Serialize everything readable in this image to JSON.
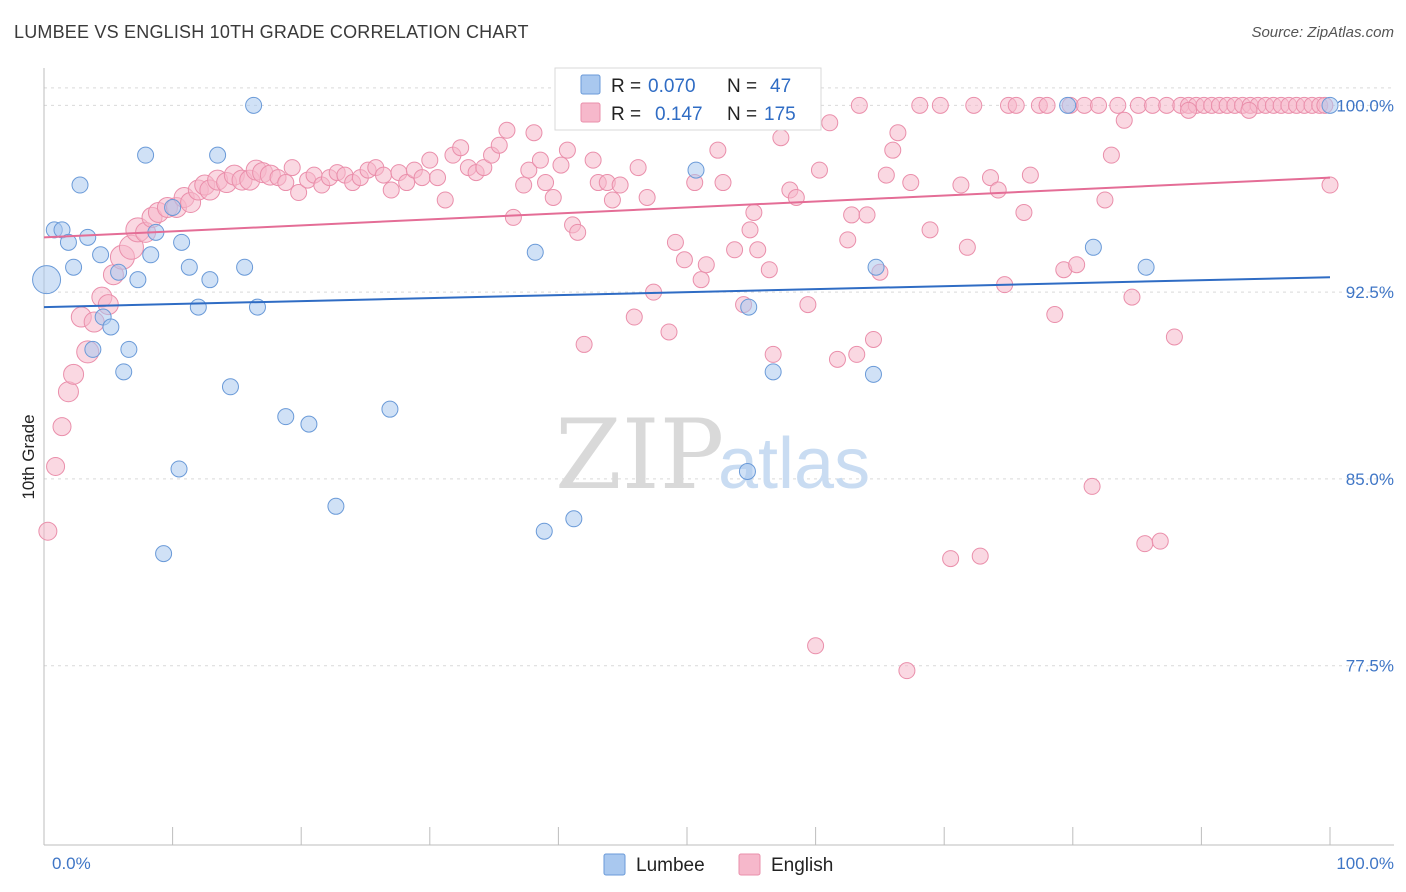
{
  "header": {
    "title": "LUMBEE VS ENGLISH 10TH GRADE CORRELATION CHART",
    "source": "Source: ZipAtlas.com"
  },
  "legend_stats": {
    "lumbee": {
      "r_label": "R = ",
      "r_value": "0.070",
      "n_label": "N = ",
      "n_value": "47"
    },
    "english": {
      "r_label": "R = ",
      "r_value": "0.147",
      "n_label": "N = ",
      "n_value": "175"
    }
  },
  "watermark": {
    "zip": "ZIP",
    "atlas": "atlas"
  },
  "colors": {
    "lumbee_fill": "#a9c8ef",
    "lumbee_stroke": "#6a9ad8",
    "lumbee_line": "#2f6cc4",
    "english_fill": "#f6b8cb",
    "english_stroke": "#ea8fab",
    "english_line": "#e46d96",
    "tick_text": "#3f76c6",
    "grid": "#d9d9d9"
  },
  "chart_data": {
    "type": "scatter",
    "title": "LUMBEE VS ENGLISH 10TH GRADE CORRELATION CHART",
    "xlabel": "",
    "ylabel": "10th Grade",
    "xlim": [
      0,
      100
    ],
    "ylim": [
      70.3,
      101.5
    ],
    "x_tick_labels": [
      "0.0%",
      "100.0%"
    ],
    "y_ticks": [
      100.0,
      92.5,
      85.0,
      77.5
    ],
    "y_tick_labels": [
      "100.0%",
      "92.5%",
      "85.0%",
      "77.5%"
    ],
    "grid": true,
    "legend_position": "bottom-center",
    "series": [
      {
        "name": "Lumbee",
        "r": 0.07,
        "n": 47,
        "trend": {
          "x": [
            0,
            100
          ],
          "y": [
            91.9,
            93.1
          ]
        },
        "points": [
          [
            0.2,
            93.0,
            14
          ],
          [
            0.8,
            95.0,
            8
          ],
          [
            1.4,
            95.0,
            8
          ],
          [
            1.9,
            94.5,
            8
          ],
          [
            2.3,
            93.5,
            8
          ],
          [
            2.8,
            96.8,
            8
          ],
          [
            3.4,
            94.7,
            8
          ],
          [
            3.8,
            90.2,
            8
          ],
          [
            4.4,
            94.0,
            8
          ],
          [
            4.6,
            91.5,
            8
          ],
          [
            5.2,
            91.1,
            8
          ],
          [
            5.8,
            93.3,
            8
          ],
          [
            6.2,
            89.3,
            8
          ],
          [
            6.6,
            90.2,
            8
          ],
          [
            7.3,
            93.0,
            8
          ],
          [
            7.9,
            98.0,
            8
          ],
          [
            8.3,
            94.0,
            8
          ],
          [
            8.7,
            94.9,
            8
          ],
          [
            9.3,
            82.0,
            8
          ],
          [
            10.0,
            95.9,
            8
          ],
          [
            10.5,
            85.4,
            8
          ],
          [
            10.7,
            94.5,
            8
          ],
          [
            11.3,
            93.5,
            8
          ],
          [
            12.0,
            91.9,
            8
          ],
          [
            12.9,
            93.0,
            8
          ],
          [
            13.5,
            98.0,
            8
          ],
          [
            14.5,
            88.7,
            8
          ],
          [
            15.6,
            93.5,
            8
          ],
          [
            16.3,
            100.0,
            8
          ],
          [
            16.6,
            91.9,
            8
          ],
          [
            18.8,
            87.5,
            8
          ],
          [
            20.6,
            87.2,
            8
          ],
          [
            22.7,
            83.9,
            8
          ],
          [
            26.9,
            87.8,
            8
          ],
          [
            38.2,
            94.1,
            8
          ],
          [
            38.9,
            82.9,
            8
          ],
          [
            41.2,
            83.4,
            8
          ],
          [
            50.7,
            97.4,
            8
          ],
          [
            54.7,
            85.3,
            8
          ],
          [
            54.8,
            91.9,
            8
          ],
          [
            56.7,
            89.3,
            8
          ],
          [
            64.5,
            89.2,
            8
          ],
          [
            64.7,
            93.5,
            8
          ],
          [
            79.6,
            100.0,
            8
          ],
          [
            81.6,
            94.3,
            8
          ],
          [
            85.7,
            93.5,
            8
          ],
          [
            100.0,
            100.0,
            8
          ]
        ]
      },
      {
        "name": "English",
        "r": 0.147,
        "n": 175,
        "trend": {
          "x": [
            0,
            100
          ],
          "y": [
            94.7,
            97.1
          ]
        },
        "points": [
          [
            0.3,
            82.9,
            9
          ],
          [
            0.9,
            85.5,
            9
          ],
          [
            1.4,
            87.1,
            9
          ],
          [
            1.9,
            88.5,
            10
          ],
          [
            2.3,
            89.2,
            10
          ],
          [
            2.9,
            91.5,
            10
          ],
          [
            3.4,
            90.1,
            11
          ],
          [
            3.9,
            91.3,
            10
          ],
          [
            4.5,
            92.3,
            10
          ],
          [
            5.0,
            92.0,
            10
          ],
          [
            5.4,
            93.2,
            10
          ],
          [
            6.1,
            93.9,
            12
          ],
          [
            6.8,
            94.3,
            12
          ],
          [
            7.3,
            95.0,
            12
          ],
          [
            7.9,
            94.9,
            10
          ],
          [
            8.4,
            95.5,
            10
          ],
          [
            8.9,
            95.7,
            10
          ],
          [
            9.6,
            95.9,
            10
          ],
          [
            10.3,
            95.9,
            10
          ],
          [
            10.9,
            96.3,
            10
          ],
          [
            11.4,
            96.1,
            10
          ],
          [
            12.0,
            96.6,
            10
          ],
          [
            12.5,
            96.8,
            10
          ],
          [
            12.9,
            96.6,
            10
          ],
          [
            13.5,
            97.0,
            10
          ],
          [
            14.2,
            96.9,
            10
          ],
          [
            14.8,
            97.2,
            10
          ],
          [
            15.4,
            97.0,
            10
          ],
          [
            16.0,
            97.0,
            10
          ],
          [
            16.5,
            97.4,
            10
          ],
          [
            17.0,
            97.3,
            10
          ],
          [
            17.6,
            97.2,
            10
          ],
          [
            18.2,
            97.1,
            8
          ],
          [
            18.8,
            96.9,
            8
          ],
          [
            19.3,
            97.5,
            8
          ],
          [
            19.8,
            96.5,
            8
          ],
          [
            20.5,
            97.0,
            8
          ],
          [
            21.0,
            97.2,
            8
          ],
          [
            21.6,
            96.8,
            8
          ],
          [
            22.2,
            97.1,
            8
          ],
          [
            22.8,
            97.3,
            8
          ],
          [
            23.4,
            97.2,
            8
          ],
          [
            24.0,
            96.9,
            8
          ],
          [
            24.6,
            97.1,
            8
          ],
          [
            25.2,
            97.4,
            8
          ],
          [
            25.8,
            97.5,
            8
          ],
          [
            26.4,
            97.2,
            8
          ],
          [
            27.0,
            96.6,
            8
          ],
          [
            27.6,
            97.3,
            8
          ],
          [
            28.2,
            96.9,
            8
          ],
          [
            28.8,
            97.4,
            8
          ],
          [
            29.4,
            97.1,
            8
          ],
          [
            30.0,
            97.8,
            8
          ],
          [
            30.6,
            97.1,
            8
          ],
          [
            31.2,
            96.2,
            8
          ],
          [
            31.8,
            98.0,
            8
          ],
          [
            32.4,
            98.3,
            8
          ],
          [
            33.0,
            97.5,
            8
          ],
          [
            33.6,
            97.3,
            8
          ],
          [
            34.2,
            97.5,
            8
          ],
          [
            34.8,
            98.0,
            8
          ],
          [
            35.4,
            98.4,
            8
          ],
          [
            36.0,
            99.0,
            8
          ],
          [
            36.5,
            95.5,
            8
          ],
          [
            37.3,
            96.8,
            8
          ],
          [
            37.7,
            97.4,
            8
          ],
          [
            38.1,
            98.9,
            8
          ],
          [
            38.6,
            97.8,
            8
          ],
          [
            39.0,
            96.9,
            8
          ],
          [
            39.6,
            96.3,
            8
          ],
          [
            40.2,
            97.6,
            8
          ],
          [
            40.7,
            98.2,
            8
          ],
          [
            41.1,
            95.2,
            8
          ],
          [
            41.5,
            94.9,
            8
          ],
          [
            42.0,
            90.4,
            8
          ],
          [
            42.7,
            97.8,
            8
          ],
          [
            43.1,
            96.9,
            8
          ],
          [
            43.8,
            96.9,
            8
          ],
          [
            44.2,
            96.2,
            8
          ],
          [
            44.8,
            96.8,
            8
          ],
          [
            45.3,
            99.5,
            8
          ],
          [
            45.9,
            91.5,
            8
          ],
          [
            46.2,
            97.5,
            8
          ],
          [
            46.9,
            96.3,
            8
          ],
          [
            47.4,
            92.5,
            8
          ],
          [
            47.9,
            99.5,
            8
          ],
          [
            48.6,
            90.9,
            8
          ],
          [
            49.1,
            94.5,
            8
          ],
          [
            49.8,
            93.8,
            8
          ],
          [
            50.6,
            96.9,
            8
          ],
          [
            51.1,
            93.0,
            8
          ],
          [
            51.5,
            93.6,
            8
          ],
          [
            52.4,
            98.2,
            8
          ],
          [
            52.8,
            96.9,
            8
          ],
          [
            53.2,
            99.6,
            8
          ],
          [
            53.7,
            94.2,
            8
          ],
          [
            54.4,
            92.0,
            8
          ],
          [
            54.9,
            95.0,
            8
          ],
          [
            55.2,
            95.7,
            8
          ],
          [
            55.5,
            94.2,
            8
          ],
          [
            56.4,
            93.4,
            8
          ],
          [
            56.7,
            90.0,
            8
          ],
          [
            57.3,
            98.7,
            8
          ],
          [
            58.0,
            96.6,
            8
          ],
          [
            58.5,
            96.3,
            8
          ],
          [
            59.4,
            92.0,
            8
          ],
          [
            60.0,
            78.3,
            8
          ],
          [
            60.3,
            97.4,
            8
          ],
          [
            61.1,
            99.3,
            8
          ],
          [
            61.7,
            89.8,
            8
          ],
          [
            62.5,
            94.6,
            8
          ],
          [
            62.8,
            95.6,
            8
          ],
          [
            63.2,
            90.0,
            8
          ],
          [
            63.4,
            100.0,
            8
          ],
          [
            64.0,
            95.6,
            8
          ],
          [
            64.5,
            90.6,
            8
          ],
          [
            65.0,
            93.3,
            8
          ],
          [
            65.5,
            97.2,
            8
          ],
          [
            66.0,
            98.2,
            8
          ],
          [
            66.4,
            98.9,
            8
          ],
          [
            67.1,
            77.3,
            8
          ],
          [
            67.4,
            96.9,
            8
          ],
          [
            68.1,
            100.0,
            8
          ],
          [
            68.9,
            95.0,
            8
          ],
          [
            69.7,
            100.0,
            8
          ],
          [
            70.5,
            81.8,
            8
          ],
          [
            71.3,
            96.8,
            8
          ],
          [
            71.8,
            94.3,
            8
          ],
          [
            72.3,
            100.0,
            8
          ],
          [
            72.8,
            81.9,
            8
          ],
          [
            73.6,
            97.1,
            8
          ],
          [
            74.2,
            96.6,
            8
          ],
          [
            74.7,
            92.8,
            8
          ],
          [
            75.0,
            100.0,
            8
          ],
          [
            75.6,
            100.0,
            8
          ],
          [
            76.2,
            95.7,
            8
          ],
          [
            76.7,
            97.2,
            8
          ],
          [
            77.4,
            100.0,
            8
          ],
          [
            78.0,
            100.0,
            8
          ],
          [
            78.6,
            91.6,
            8
          ],
          [
            79.3,
            93.4,
            8
          ],
          [
            79.8,
            100.0,
            8
          ],
          [
            80.3,
            93.6,
            8
          ],
          [
            80.9,
            100.0,
            8
          ],
          [
            81.5,
            84.7,
            8
          ],
          [
            82.0,
            100.0,
            8
          ],
          [
            82.5,
            96.2,
            8
          ],
          [
            83.0,
            98.0,
            8
          ],
          [
            83.5,
            100.0,
            8
          ],
          [
            84.0,
            99.4,
            8
          ],
          [
            84.6,
            92.3,
            8
          ],
          [
            85.1,
            100.0,
            8
          ],
          [
            85.6,
            82.4,
            8
          ],
          [
            86.2,
            100.0,
            8
          ],
          [
            86.8,
            82.5,
            8
          ],
          [
            87.3,
            100.0,
            8
          ],
          [
            87.9,
            90.7,
            8
          ],
          [
            88.4,
            100.0,
            8
          ],
          [
            89.0,
            100.0,
            8
          ],
          [
            89.6,
            100.0,
            8
          ],
          [
            90.2,
            100.0,
            8
          ],
          [
            90.8,
            100.0,
            8
          ],
          [
            91.4,
            100.0,
            8
          ],
          [
            92.0,
            100.0,
            8
          ],
          [
            92.6,
            100.0,
            8
          ],
          [
            93.2,
            100.0,
            8
          ],
          [
            93.8,
            100.0,
            8
          ],
          [
            94.4,
            100.0,
            8
          ],
          [
            95.0,
            100.0,
            8
          ],
          [
            95.6,
            100.0,
            8
          ],
          [
            96.2,
            100.0,
            8
          ],
          [
            96.8,
            100.0,
            8
          ],
          [
            97.4,
            100.0,
            8
          ],
          [
            98.0,
            100.0,
            8
          ],
          [
            98.6,
            100.0,
            8
          ],
          [
            99.2,
            100.0,
            8
          ],
          [
            100.0,
            96.8,
            8
          ],
          [
            89.0,
            99.8,
            8
          ],
          [
            93.7,
            99.8,
            8
          ],
          [
            99.6,
            100.0,
            8
          ]
        ]
      }
    ]
  },
  "bottom_legend": [
    "Lumbee",
    "English"
  ],
  "axis": {
    "x_min_label": "0.0%",
    "x_max_label": "100.0%",
    "ylabel": "10th Grade"
  }
}
